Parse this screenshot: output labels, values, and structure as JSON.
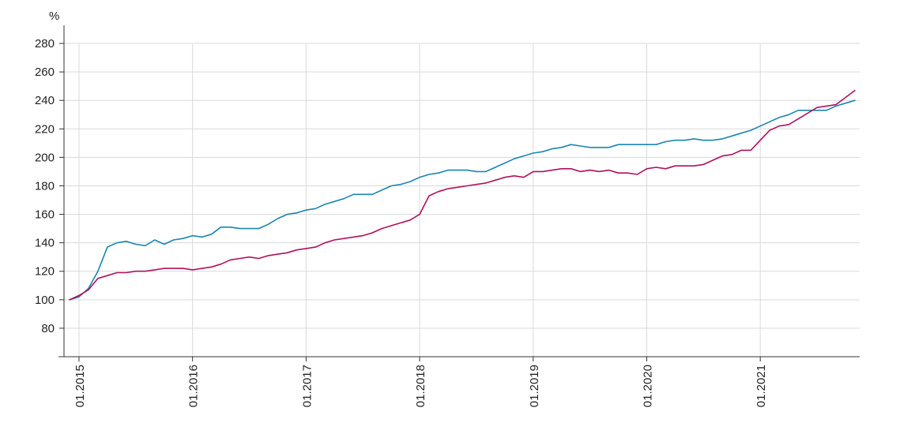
{
  "chart_data": {
    "type": "line",
    "title": "",
    "xlabel": "",
    "ylabel": "%",
    "ylim": [
      60,
      290
    ],
    "xlim": [
      "2014-12",
      "2021-11"
    ],
    "grid": true,
    "legend": "none",
    "y_ticks": [
      80,
      100,
      120,
      140,
      160,
      180,
      200,
      220,
      240,
      260,
      280
    ],
    "x_ticks": [
      "01.2015",
      "01.2016",
      "01.2017",
      "01.2018",
      "01.2019",
      "01.2020",
      "01.2021"
    ],
    "x_tick_dates": [
      "2015-01",
      "2016-01",
      "2017-01",
      "2018-01",
      "2019-01",
      "2020-01",
      "2021-01"
    ],
    "colors": {
      "series_blue": "#1a86b0",
      "series_magenta": "#b0105e",
      "grid": "#d9d9d9",
      "axis": "#333333"
    },
    "series": [
      {
        "color": "#1a86b0",
        "points": [
          [
            "2014-12",
            100
          ],
          [
            "2015-01",
            102
          ],
          [
            "2015-02",
            108
          ],
          [
            "2015-03",
            120
          ],
          [
            "2015-04",
            137
          ],
          [
            "2015-05",
            140
          ],
          [
            "2015-06",
            141
          ],
          [
            "2015-07",
            139
          ],
          [
            "2015-08",
            138
          ],
          [
            "2015-09",
            142
          ],
          [
            "2015-10",
            139
          ],
          [
            "2015-11",
            142
          ],
          [
            "2015-12",
            143
          ],
          [
            "2016-01",
            145
          ],
          [
            "2016-02",
            144
          ],
          [
            "2016-03",
            146
          ],
          [
            "2016-04",
            151
          ],
          [
            "2016-05",
            151
          ],
          [
            "2016-06",
            150
          ],
          [
            "2016-07",
            150
          ],
          [
            "2016-08",
            150
          ],
          [
            "2016-09",
            153
          ],
          [
            "2016-10",
            157
          ],
          [
            "2016-11",
            160
          ],
          [
            "2016-12",
            161
          ],
          [
            "2017-01",
            163
          ],
          [
            "2017-02",
            164
          ],
          [
            "2017-03",
            167
          ],
          [
            "2017-04",
            169
          ],
          [
            "2017-05",
            171
          ],
          [
            "2017-06",
            174
          ],
          [
            "2017-07",
            174
          ],
          [
            "2017-08",
            174
          ],
          [
            "2017-09",
            177
          ],
          [
            "2017-10",
            180
          ],
          [
            "2017-11",
            181
          ],
          [
            "2017-12",
            183
          ],
          [
            "2018-01",
            186
          ],
          [
            "2018-02",
            188
          ],
          [
            "2018-03",
            189
          ],
          [
            "2018-04",
            191
          ],
          [
            "2018-05",
            191
          ],
          [
            "2018-06",
            191
          ],
          [
            "2018-07",
            190
          ],
          [
            "2018-08",
            190
          ],
          [
            "2018-09",
            193
          ],
          [
            "2018-10",
            196
          ],
          [
            "2018-11",
            199
          ],
          [
            "2018-12",
            201
          ],
          [
            "2019-01",
            203
          ],
          [
            "2019-02",
            204
          ],
          [
            "2019-03",
            206
          ],
          [
            "2019-04",
            207
          ],
          [
            "2019-05",
            209
          ],
          [
            "2019-06",
            208
          ],
          [
            "2019-07",
            207
          ],
          [
            "2019-08",
            207
          ],
          [
            "2019-09",
            207
          ],
          [
            "2019-10",
            209
          ],
          [
            "2019-11",
            209
          ],
          [
            "2019-12",
            209
          ],
          [
            "2020-01",
            209
          ],
          [
            "2020-02",
            209
          ],
          [
            "2020-03",
            211
          ],
          [
            "2020-04",
            212
          ],
          [
            "2020-05",
            212
          ],
          [
            "2020-06",
            213
          ],
          [
            "2020-07",
            212
          ],
          [
            "2020-08",
            212
          ],
          [
            "2020-09",
            213
          ],
          [
            "2020-10",
            215
          ],
          [
            "2020-11",
            217
          ],
          [
            "2020-12",
            219
          ],
          [
            "2021-01",
            222
          ],
          [
            "2021-02",
            225
          ],
          [
            "2021-03",
            228
          ],
          [
            "2021-04",
            230
          ],
          [
            "2021-05",
            233
          ],
          [
            "2021-06",
            233
          ],
          [
            "2021-07",
            233
          ],
          [
            "2021-08",
            233
          ],
          [
            "2021-09",
            236
          ],
          [
            "2021-10",
            238
          ],
          [
            "2021-11",
            240
          ]
        ]
      },
      {
        "color": "#b0105e",
        "points": [
          [
            "2014-12",
            100
          ],
          [
            "2015-01",
            103
          ],
          [
            "2015-02",
            107
          ],
          [
            "2015-03",
            115
          ],
          [
            "2015-04",
            117
          ],
          [
            "2015-05",
            119
          ],
          [
            "2015-06",
            119
          ],
          [
            "2015-07",
            120
          ],
          [
            "2015-08",
            120
          ],
          [
            "2015-09",
            121
          ],
          [
            "2015-10",
            122
          ],
          [
            "2015-11",
            122
          ],
          [
            "2015-12",
            122
          ],
          [
            "2016-01",
            121
          ],
          [
            "2016-02",
            122
          ],
          [
            "2016-03",
            123
          ],
          [
            "2016-04",
            125
          ],
          [
            "2016-05",
            128
          ],
          [
            "2016-06",
            129
          ],
          [
            "2016-07",
            130
          ],
          [
            "2016-08",
            129
          ],
          [
            "2016-09",
            131
          ],
          [
            "2016-10",
            132
          ],
          [
            "2016-11",
            133
          ],
          [
            "2016-12",
            135
          ],
          [
            "2017-01",
            136
          ],
          [
            "2017-02",
            137
          ],
          [
            "2017-03",
            140
          ],
          [
            "2017-04",
            142
          ],
          [
            "2017-05",
            143
          ],
          [
            "2017-06",
            144
          ],
          [
            "2017-07",
            145
          ],
          [
            "2017-08",
            147
          ],
          [
            "2017-09",
            150
          ],
          [
            "2017-10",
            152
          ],
          [
            "2017-11",
            154
          ],
          [
            "2017-12",
            156
          ],
          [
            "2018-01",
            160
          ],
          [
            "2018-02",
            173
          ],
          [
            "2018-03",
            176
          ],
          [
            "2018-04",
            178
          ],
          [
            "2018-05",
            179
          ],
          [
            "2018-06",
            180
          ],
          [
            "2018-07",
            181
          ],
          [
            "2018-08",
            182
          ],
          [
            "2018-09",
            184
          ],
          [
            "2018-10",
            186
          ],
          [
            "2018-11",
            187
          ],
          [
            "2018-12",
            186
          ],
          [
            "2019-01",
            190
          ],
          [
            "2019-02",
            190
          ],
          [
            "2019-03",
            191
          ],
          [
            "2019-04",
            192
          ],
          [
            "2019-05",
            192
          ],
          [
            "2019-06",
            190
          ],
          [
            "2019-07",
            191
          ],
          [
            "2019-08",
            190
          ],
          [
            "2019-09",
            191
          ],
          [
            "2019-10",
            189
          ],
          [
            "2019-11",
            189
          ],
          [
            "2019-12",
            188
          ],
          [
            "2020-01",
            192
          ],
          [
            "2020-02",
            193
          ],
          [
            "2020-03",
            192
          ],
          [
            "2020-04",
            194
          ],
          [
            "2020-05",
            194
          ],
          [
            "2020-06",
            194
          ],
          [
            "2020-07",
            195
          ],
          [
            "2020-08",
            198
          ],
          [
            "2020-09",
            201
          ],
          [
            "2020-10",
            202
          ],
          [
            "2020-11",
            205
          ],
          [
            "2020-12",
            205
          ],
          [
            "2021-01",
            212
          ],
          [
            "2021-02",
            219
          ],
          [
            "2021-03",
            222
          ],
          [
            "2021-04",
            223
          ],
          [
            "2021-05",
            227
          ],
          [
            "2021-06",
            231
          ],
          [
            "2021-07",
            235
          ],
          [
            "2021-08",
            236
          ],
          [
            "2021-09",
            237
          ],
          [
            "2021-10",
            242
          ],
          [
            "2021-11",
            247
          ]
        ]
      }
    ]
  }
}
